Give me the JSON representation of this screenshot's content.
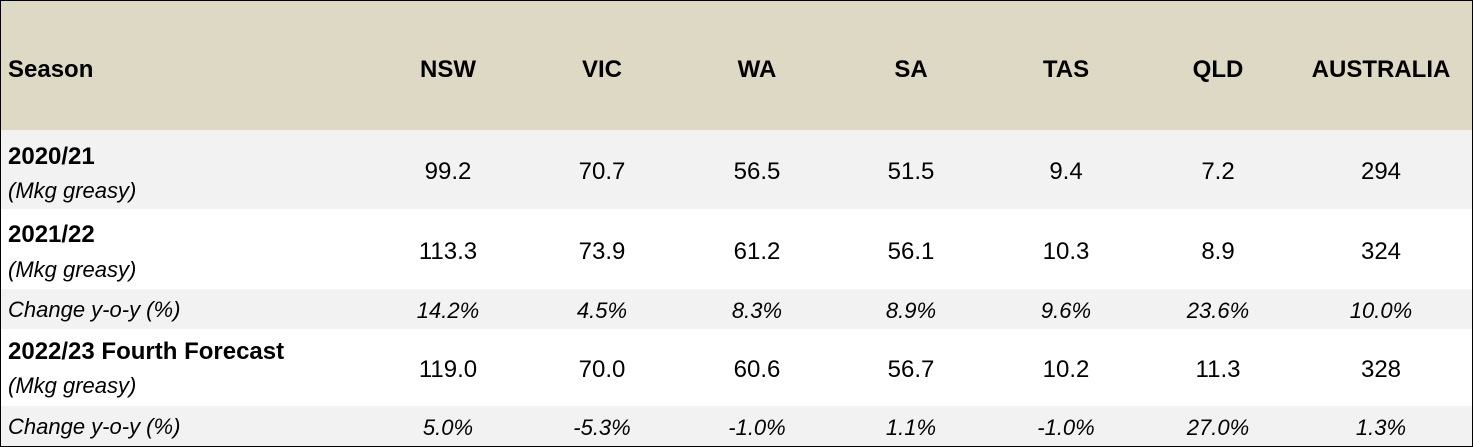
{
  "colors": {
    "header_bg": "#ddd9c4",
    "row_shaded": "#f2f2f2",
    "row_white": "#ffffff",
    "border": "#000000"
  },
  "columns": [
    "Season",
    "NSW",
    "VIC",
    "WA",
    "SA",
    "TAS",
    "QLD",
    "AUSTRALIA"
  ],
  "rows": [
    {
      "season": "2020/21",
      "unit": "(Mkg greasy)",
      "values": [
        "99.2",
        "70.7",
        "56.5",
        "51.5",
        "9.4",
        "7.2",
        "294"
      ]
    },
    {
      "season": "2021/22",
      "unit": "(Mkg greasy)",
      "values": [
        "113.3",
        "73.9",
        "61.2",
        "56.1",
        "10.3",
        "8.9",
        "324"
      ]
    },
    {
      "season": "Change y-o-y (%)",
      "values": [
        "14.2%",
        "4.5%",
        "8.3%",
        "8.9%",
        "9.6%",
        "23.6%",
        "10.0%"
      ]
    },
    {
      "season": "2022/23 Fourth Forecast",
      "unit": "(Mkg greasy)",
      "values": [
        "119.0",
        "70.0",
        "60.6",
        "56.7",
        "10.2",
        "11.3",
        "328"
      ]
    },
    {
      "season": "Change y-o-y (%)",
      "values": [
        "5.0%",
        "-5.3%",
        "-1.0%",
        "1.1%",
        "-1.0%",
        "27.0%",
        "1.3%"
      ]
    }
  ]
}
